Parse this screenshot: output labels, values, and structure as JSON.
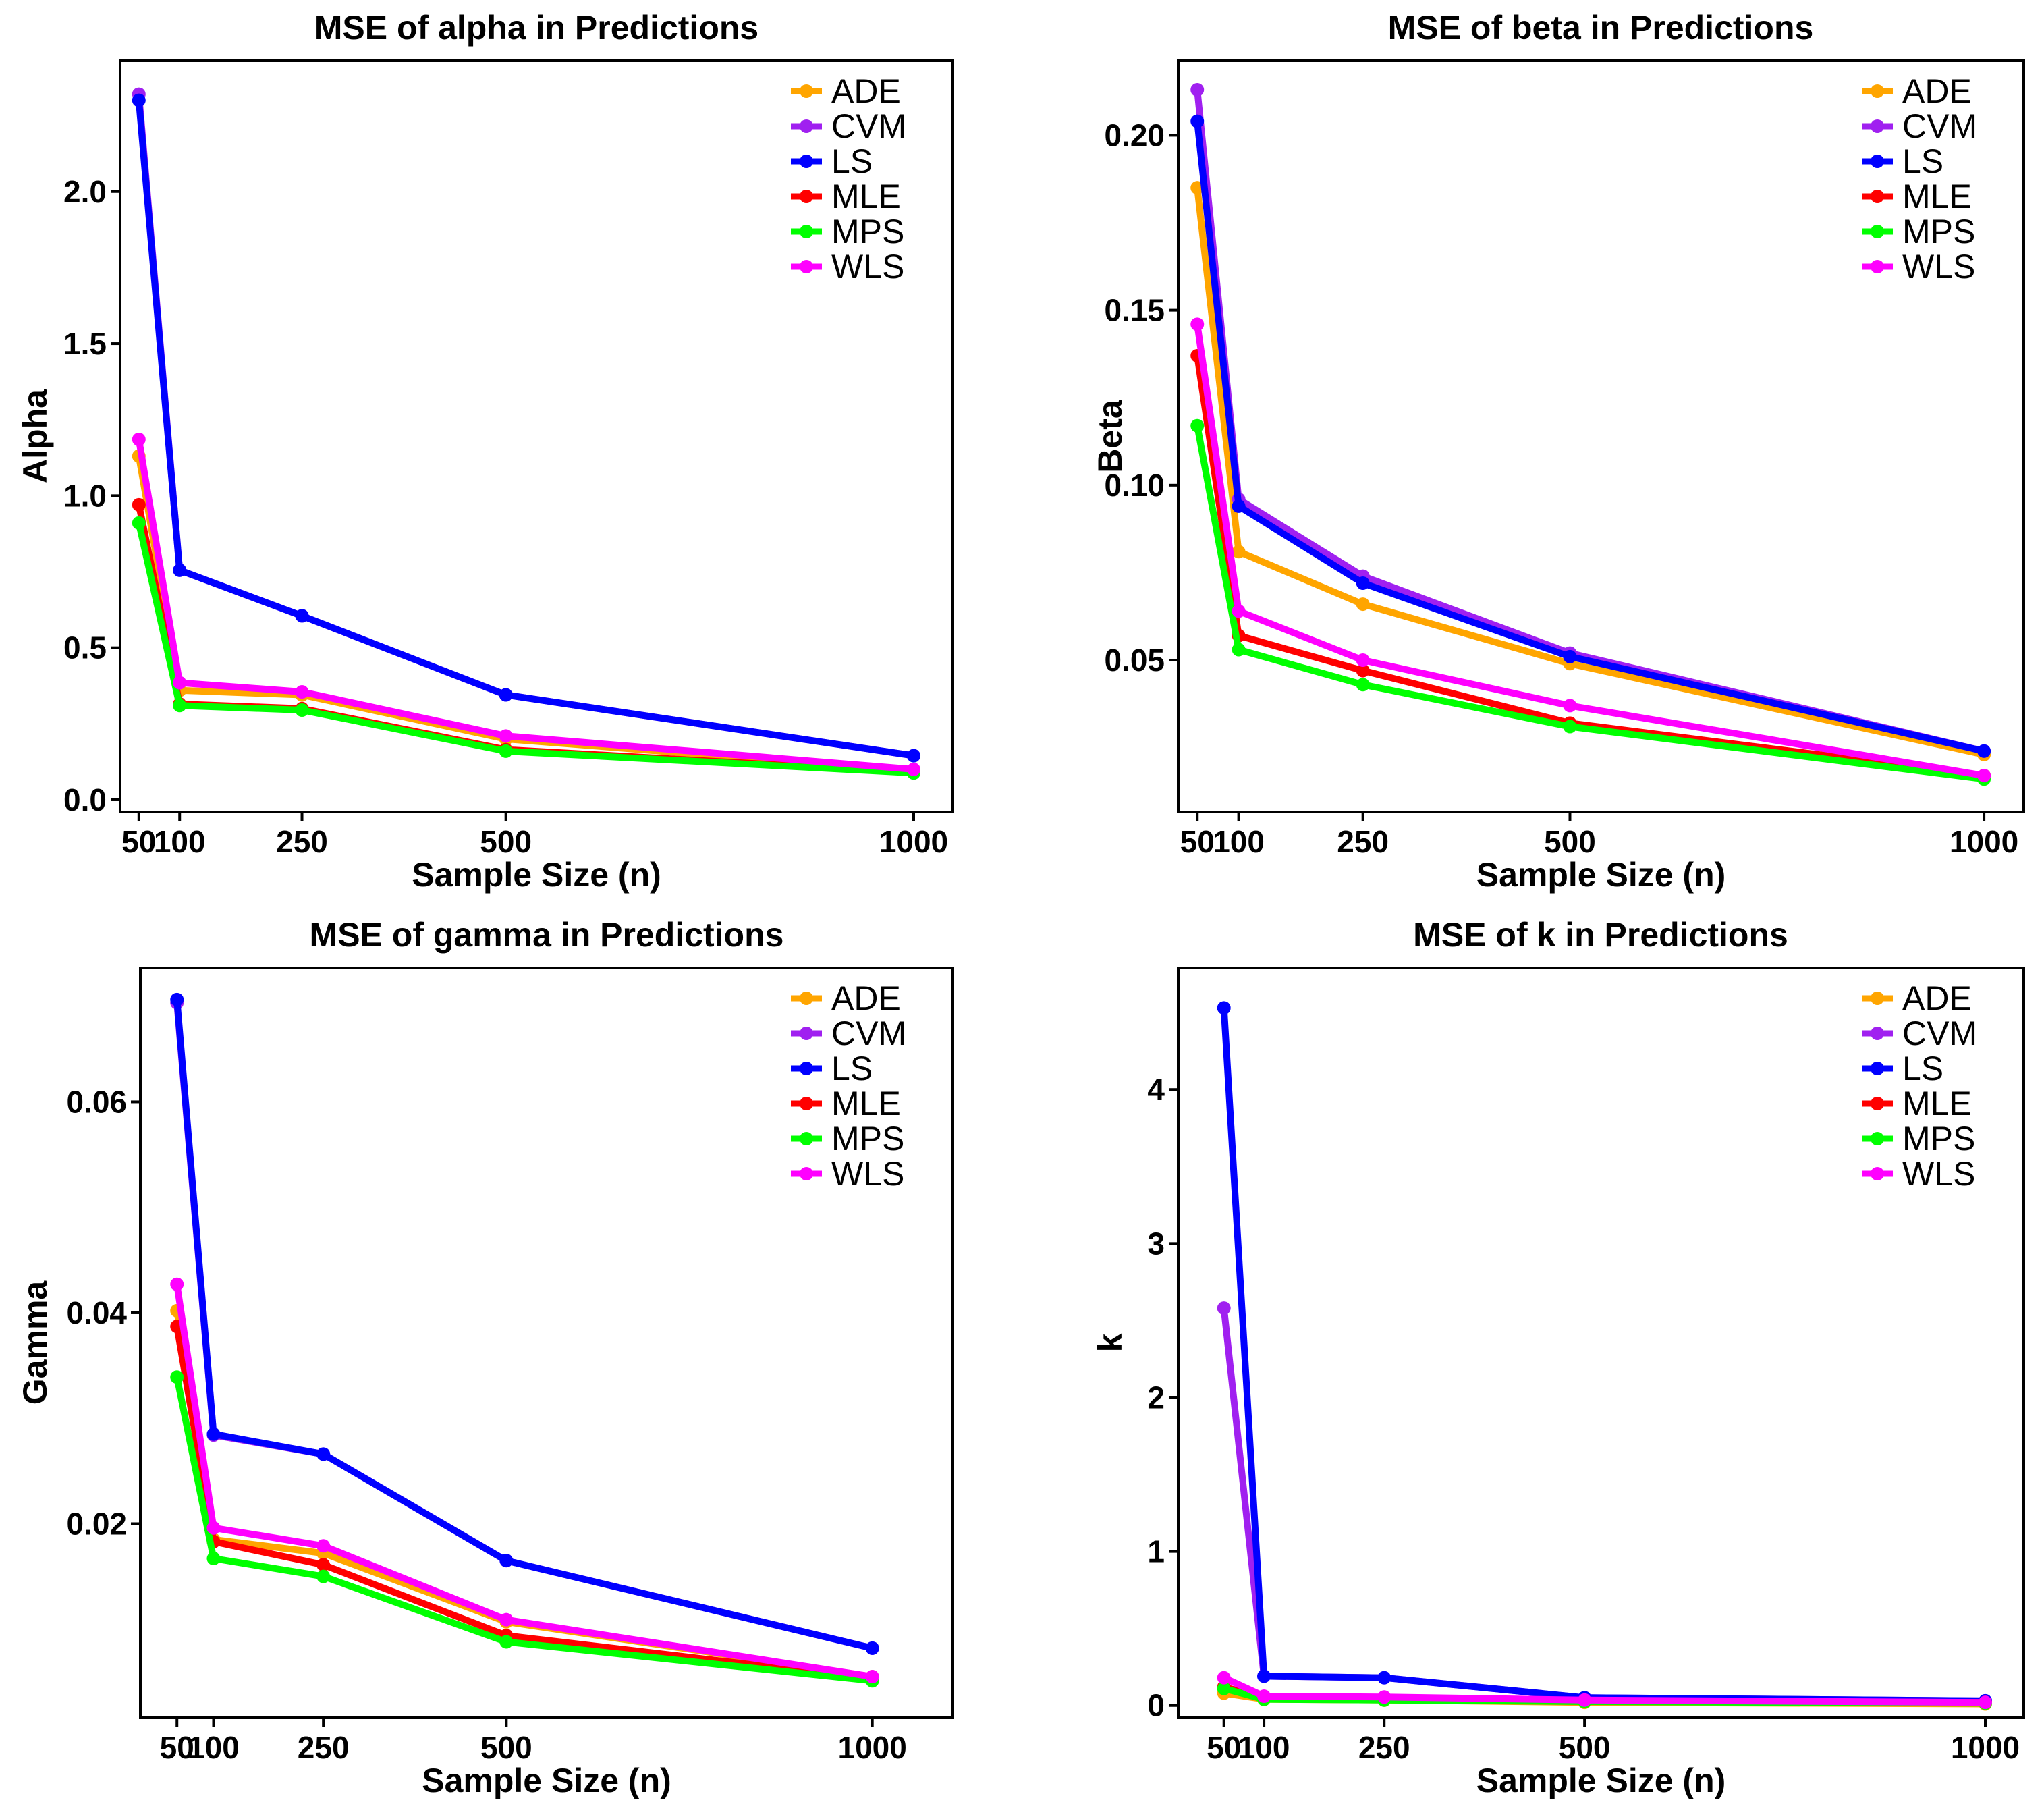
{
  "chart_data": [
    {
      "type": "line",
      "title": "MSE of alpha in Predictions",
      "xlabel": "Sample Size (n)",
      "ylabel": "Alpha",
      "x": [
        50,
        100,
        250,
        500,
        1000
      ],
      "xticks": [
        "50",
        "100",
        "250",
        "500",
        "1000"
      ],
      "xlim": [
        27,
        1048
      ],
      "yticks": [
        "0.0",
        "0.5",
        "1.0",
        "1.5",
        "2.0"
      ],
      "ytick_values": [
        0.0,
        0.5,
        1.0,
        1.5,
        2.0
      ],
      "ylim": [
        -0.04,
        2.43
      ],
      "series": [
        {
          "name": "ADE",
          "color": "#FFA500",
          "values": [
            1.13,
            0.36,
            0.345,
            0.2,
            0.095
          ]
        },
        {
          "name": "CVM",
          "color": "#A020F0",
          "values": [
            2.32,
            0.755,
            0.605,
            0.345,
            0.145
          ]
        },
        {
          "name": "LS",
          "color": "#0000FF",
          "values": [
            2.3,
            0.755,
            0.605,
            0.345,
            0.145
          ]
        },
        {
          "name": "MLE",
          "color": "#FF0000",
          "values": [
            0.97,
            0.315,
            0.3,
            0.165,
            0.09
          ]
        },
        {
          "name": "MPS",
          "color": "#00FF00",
          "values": [
            0.91,
            0.31,
            0.295,
            0.16,
            0.088
          ]
        },
        {
          "name": "WLS",
          "color": "#FF00FF",
          "values": [
            1.185,
            0.385,
            0.355,
            0.21,
            0.1
          ]
        }
      ]
    },
    {
      "type": "line",
      "title": "MSE of beta in Predictions",
      "xlabel": "Sample Size (n)",
      "ylabel": "Beta",
      "x": [
        50,
        100,
        250,
        500,
        1000
      ],
      "xticks": [
        "50",
        "100",
        "250",
        "500",
        "1000"
      ],
      "xlim": [
        27,
        1048
      ],
      "yticks": [
        "0.05",
        "0.10",
        "0.15",
        "0.20"
      ],
      "ytick_values": [
        0.05,
        0.1,
        0.15,
        0.2
      ],
      "ylim": [
        0.0066,
        0.2213
      ],
      "series": [
        {
          "name": "ADE",
          "color": "#FFA500",
          "values": [
            0.185,
            0.081,
            0.066,
            0.049,
            0.023
          ]
        },
        {
          "name": "CVM",
          "color": "#A020F0",
          "values": [
            0.213,
            0.096,
            0.074,
            0.052,
            0.024
          ]
        },
        {
          "name": "LS",
          "color": "#0000FF",
          "values": [
            0.204,
            0.094,
            0.072,
            0.051,
            0.024
          ]
        },
        {
          "name": "MLE",
          "color": "#FF0000",
          "values": [
            0.137,
            0.057,
            0.047,
            0.032,
            0.017
          ]
        },
        {
          "name": "MPS",
          "color": "#00FF00",
          "values": [
            0.117,
            0.053,
            0.043,
            0.031,
            0.016
          ]
        },
        {
          "name": "WLS",
          "color": "#FF00FF",
          "values": [
            0.146,
            0.064,
            0.05,
            0.037,
            0.017
          ]
        }
      ]
    },
    {
      "type": "line",
      "title": "MSE of gamma in Predictions",
      "xlabel": "Sample Size (n)",
      "ylabel": "Gamma",
      "x": [
        50,
        100,
        250,
        500,
        1000
      ],
      "xticks": [
        "50",
        "100",
        "250",
        "500",
        "1000"
      ],
      "xlim": [
        0,
        1110
      ],
      "yticks": [
        "0.02",
        "0.04",
        "0.06"
      ],
      "ytick_values": [
        0.02,
        0.04,
        0.06
      ],
      "ylim": [
        0.0016,
        0.0727
      ],
      "series": [
        {
          "name": "ADE",
          "color": "#FFA500",
          "values": [
            0.0402,
            0.0185,
            0.0172,
            0.0107,
            0.0055
          ]
        },
        {
          "name": "CVM",
          "color": "#A020F0",
          "values": [
            0.0694,
            0.0284,
            0.0266,
            0.0165,
            0.0082
          ]
        },
        {
          "name": "LS",
          "color": "#0000FF",
          "values": [
            0.0697,
            0.0285,
            0.0266,
            0.0165,
            0.0082
          ]
        },
        {
          "name": "MLE",
          "color": "#FF0000",
          "values": [
            0.0387,
            0.0183,
            0.0161,
            0.0094,
            0.0053
          ]
        },
        {
          "name": "MPS",
          "color": "#00FF00",
          "values": [
            0.0339,
            0.0167,
            0.015,
            0.0088,
            0.0051
          ]
        },
        {
          "name": "WLS",
          "color": "#FF00FF",
          "values": [
            0.0427,
            0.0196,
            0.0179,
            0.0109,
            0.0055
          ]
        }
      ]
    },
    {
      "type": "line",
      "title": "MSE of k in Predictions",
      "xlabel": "Sample Size (n)",
      "ylabel": "k",
      "x": [
        50,
        100,
        250,
        500,
        1000
      ],
      "xticks": [
        "50",
        "100",
        "250",
        "500",
        "1000"
      ],
      "xlim": [
        -7,
        1048
      ],
      "yticks": [
        "0",
        "1",
        "2",
        "3",
        "4"
      ],
      "ytick_values": [
        0,
        1,
        2,
        3,
        4
      ],
      "ylim": [
        -0.08,
        4.79
      ],
      "series": [
        {
          "name": "ADE",
          "color": "#FFA500",
          "values": [
            0.08,
            0.04,
            0.035,
            0.02,
            0.01
          ]
        },
        {
          "name": "CVM",
          "color": "#A020F0",
          "values": [
            2.58,
            0.19,
            0.18,
            0.05,
            0.03
          ]
        },
        {
          "name": "LS",
          "color": "#0000FF",
          "values": [
            4.53,
            0.19,
            0.18,
            0.05,
            0.03
          ]
        },
        {
          "name": "MLE",
          "color": "#FF0000",
          "values": [
            0.12,
            0.05,
            0.04,
            0.03,
            0.02
          ]
        },
        {
          "name": "MPS",
          "color": "#00FF00",
          "values": [
            0.11,
            0.04,
            0.035,
            0.025,
            0.015
          ]
        },
        {
          "name": "WLS",
          "color": "#FF00FF",
          "values": [
            0.18,
            0.06,
            0.055,
            0.035,
            0.02
          ]
        }
      ]
    }
  ]
}
